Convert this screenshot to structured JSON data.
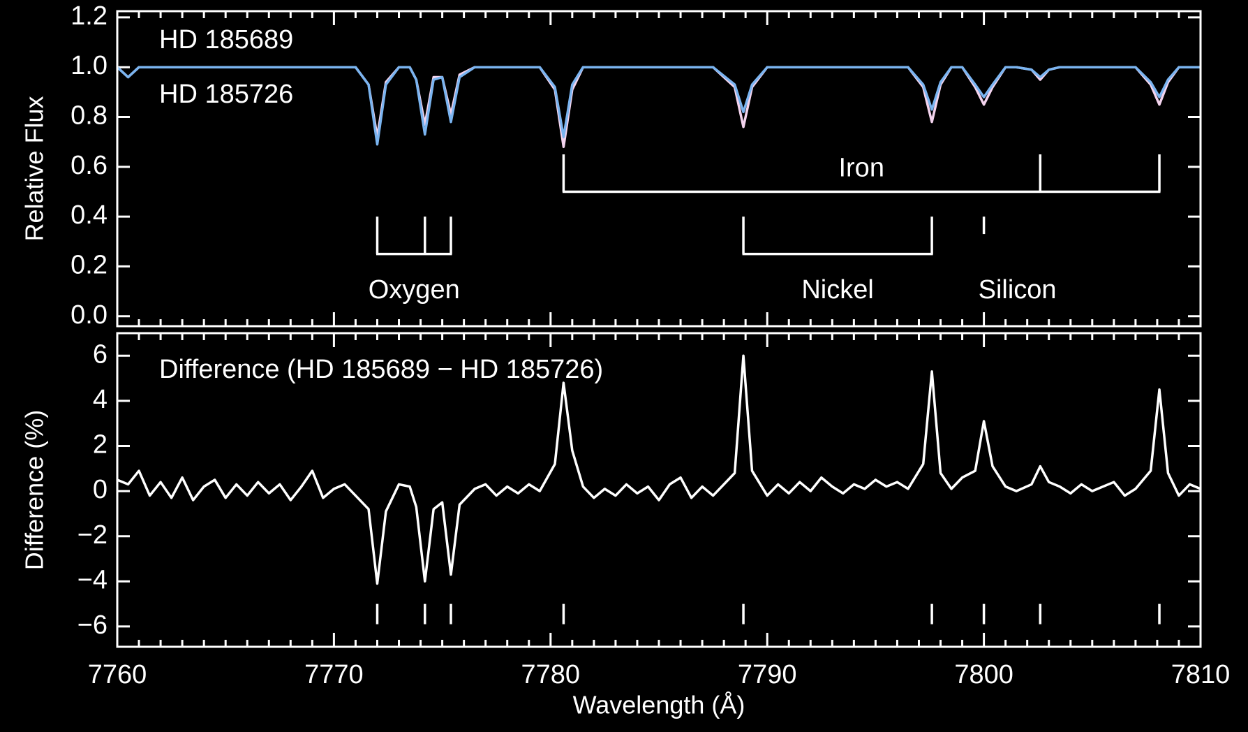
{
  "chart_data": [
    {
      "type": "line",
      "ylabel": "Relative Flux",
      "xlim": [
        7760,
        7810
      ],
      "xticks": [
        7760,
        7770,
        7780,
        7790,
        7800,
        7810
      ],
      "xminorticks": [
        7761,
        7762,
        7763,
        7764,
        7765,
        7766,
        7767,
        7768,
        7769,
        7771,
        7772,
        7773,
        7774,
        7775,
        7776,
        7777,
        7778,
        7779,
        7781,
        7782,
        7783,
        7784,
        7785,
        7786,
        7787,
        7788,
        7789,
        7791,
        7792,
        7793,
        7794,
        7795,
        7796,
        7797,
        7798,
        7799,
        7801,
        7802,
        7803,
        7804,
        7805,
        7806,
        7807,
        7808,
        7809
      ],
      "ylim": [
        -0.04,
        1.225
      ],
      "yticks": [
        {
          "value": 0,
          "label": "0.0"
        },
        0.2,
        0.4,
        0.6,
        0.8,
        {
          "value": 1,
          "label": "1.0"
        },
        1.2
      ],
      "legend": "upper left",
      "x": [
        7760,
        7760.5,
        7761,
        7761.5,
        7762,
        7762.5,
        7763,
        7763.5,
        7764,
        7764.5,
        7765,
        7765.5,
        7766,
        7766.5,
        7767,
        7767.5,
        7768,
        7768.5,
        7769,
        7769.5,
        7770,
        7770.5,
        7771,
        7771.6,
        7772.0,
        7772.4,
        7773,
        7773.5,
        7773.8,
        7774.2,
        7774.6,
        7775.0,
        7775.4,
        7775.8,
        7776.5,
        7777,
        7777.5,
        7778,
        7778.5,
        7779,
        7779.5,
        7780.2,
        7780.6,
        7781.0,
        7781.5,
        7782,
        7782.5,
        7783,
        7783.5,
        7784,
        7784.5,
        7785,
        7785.5,
        7786,
        7786.5,
        7787,
        7787.5,
        7788.5,
        7788.9,
        7789.3,
        7790,
        7790.5,
        7791,
        7791.5,
        7792,
        7792.5,
        7793,
        7793.5,
        7794,
        7794.5,
        7795,
        7795.5,
        7796,
        7796.5,
        7797.2,
        7797.6,
        7798.0,
        7798.5,
        7799,
        7799.6,
        7800.0,
        7800.4,
        7801,
        7801.5,
        7802.2,
        7802.6,
        7803.0,
        7803.5,
        7804,
        7804.5,
        7805,
        7805.5,
        7806,
        7806.5,
        7807,
        7807.7,
        7808.1,
        7808.5,
        7809,
        7809.5,
        7810
      ],
      "series": [
        {
          "name": "HD 185689",
          "color": "#7ab4f0",
          "values": [
            1,
            0.96,
            1,
            1,
            1,
            1,
            1,
            1,
            1,
            1,
            1,
            1,
            1,
            1,
            1,
            1,
            1,
            1,
            1,
            1,
            1,
            1,
            1,
            0.93,
            0.69,
            0.93,
            1,
            1,
            0.95,
            0.73,
            0.95,
            0.96,
            0.78,
            0.96,
            1,
            1,
            1,
            1,
            1,
            1,
            1,
            0.92,
            0.72,
            0.93,
            1,
            1,
            1,
            1,
            1,
            1,
            1,
            1,
            1,
            1,
            1,
            1,
            1,
            0.93,
            0.82,
            0.93,
            1,
            1,
            1,
            1,
            1,
            1,
            1,
            1,
            1,
            1,
            1,
            1,
            1,
            1,
            0.93,
            0.83,
            0.94,
            1,
            1,
            0.93,
            0.88,
            0.93,
            1,
            1,
            0.99,
            0.96,
            0.99,
            1,
            1,
            1,
            1,
            1,
            1,
            1,
            1,
            0.94,
            0.88,
            0.95,
            1,
            1,
            1
          ]
        },
        {
          "name": "HD 185726",
          "color": "#f4d4ee",
          "values": [
            1,
            0.96,
            1,
            1,
            1,
            1,
            1,
            1,
            1,
            1,
            1,
            1,
            1,
            1,
            1,
            1,
            1,
            1,
            1,
            1,
            1,
            1,
            1,
            0.93,
            0.72,
            0.94,
            1,
            1,
            0.95,
            0.77,
            0.96,
            0.96,
            0.81,
            0.97,
            1,
            1,
            1,
            1,
            1,
            1,
            1,
            0.91,
            0.68,
            0.91,
            1,
            1,
            1,
            1,
            1,
            1,
            1,
            1,
            1,
            1,
            1,
            1,
            1,
            0.92,
            0.76,
            0.92,
            1,
            1,
            1,
            1,
            1,
            1,
            1,
            1,
            1,
            1,
            1,
            1,
            1,
            1,
            0.92,
            0.78,
            0.93,
            1,
            1,
            0.92,
            0.85,
            0.92,
            1,
            1,
            0.99,
            0.95,
            0.99,
            1,
            1,
            1,
            1,
            1,
            1,
            1,
            1,
            0.93,
            0.85,
            0.94,
            1,
            1,
            1
          ]
        }
      ],
      "annotations": [
        {
          "text": "Oxygen",
          "color": "#f5e27a",
          "lines": [
            7772.0,
            7774.2,
            7775.4
          ]
        },
        {
          "text": "Iron",
          "color": "#8fe8e8",
          "lines": [
            7780.6,
            7802.6,
            7808.1
          ]
        },
        {
          "text": "Nickel",
          "color": "#8fe8e8",
          "lines": [
            7788.9,
            7797.6
          ]
        },
        {
          "text": "Silicon",
          "color": "#8fe8e8",
          "lines": [
            7800.0
          ]
        }
      ]
    },
    {
      "type": "line",
      "ylabel": "Difference (%)",
      "xlabel": "Wavelength (Å)",
      "xlim": [
        7760,
        7810
      ],
      "xticks": [
        7760,
        7770,
        7780,
        7790,
        7800,
        7810
      ],
      "xminorticks": [
        7761,
        7762,
        7763,
        7764,
        7765,
        7766,
        7767,
        7768,
        7769,
        7771,
        7772,
        7773,
        7774,
        7775,
        7776,
        7777,
        7778,
        7779,
        7781,
        7782,
        7783,
        7784,
        7785,
        7786,
        7787,
        7788,
        7789,
        7791,
        7792,
        7793,
        7794,
        7795,
        7796,
        7797,
        7798,
        7799,
        7801,
        7802,
        7803,
        7804,
        7805,
        7806,
        7807,
        7808,
        7809
      ],
      "ylim": [
        -6.9,
        7.0
      ],
      "yticks": [
        {
          "value": -6,
          "label": "−6"
        },
        {
          "value": -4,
          "label": "−4"
        },
        {
          "value": -2,
          "label": "−2"
        },
        0,
        2,
        4,
        6
      ],
      "x": [
        7760,
        7760.5,
        7761,
        7761.5,
        7762,
        7762.5,
        7763,
        7763.5,
        7764,
        7764.5,
        7765,
        7765.5,
        7766,
        7766.5,
        7767,
        7767.5,
        7768,
        7768.5,
        7769,
        7769.5,
        7770,
        7770.5,
        7771,
        7771.6,
        7772.0,
        7772.4,
        7773,
        7773.5,
        7773.8,
        7774.2,
        7774.6,
        7775.0,
        7775.4,
        7775.8,
        7776.5,
        7777,
        7777.5,
        7778,
        7778.5,
        7779,
        7779.5,
        7780.2,
        7780.6,
        7781.0,
        7781.5,
        7782,
        7782.5,
        7783,
        7783.5,
        7784,
        7784.5,
        7785,
        7785.5,
        7786,
        7786.5,
        7787,
        7787.5,
        7788.5,
        7788.9,
        7789.3,
        7790,
        7790.5,
        7791,
        7791.5,
        7792,
        7792.5,
        7793,
        7793.5,
        7794,
        7794.5,
        7795,
        7795.5,
        7796,
        7796.5,
        7797.2,
        7797.6,
        7798.0,
        7798.5,
        7799,
        7799.6,
        7800.0,
        7800.4,
        7801,
        7801.5,
        7802.2,
        7802.6,
        7803.0,
        7803.5,
        7804,
        7804.5,
        7805,
        7805.5,
        7806,
        7806.5,
        7807,
        7807.7,
        7808.1,
        7808.5,
        7809,
        7809.5,
        7810
      ],
      "series": [
        {
          "color": "#ffffff",
          "values": [
            0.5,
            0.3,
            0.9,
            -0.2,
            0.4,
            -0.3,
            0.6,
            -0.4,
            0.2,
            0.5,
            -0.3,
            0.3,
            -0.2,
            0.4,
            -0.1,
            0.3,
            -0.4,
            0.2,
            0.9,
            -0.3,
            0.1,
            0.3,
            -0.2,
            -0.8,
            -4.1,
            -0.9,
            0.3,
            0.2,
            -0.7,
            -4.0,
            -0.8,
            -0.5,
            -3.7,
            -0.6,
            0.1,
            0.3,
            -0.2,
            0.2,
            -0.1,
            0.3,
            0.0,
            1.2,
            4.8,
            1.8,
            0.2,
            -0.3,
            0.1,
            -0.2,
            0.3,
            -0.1,
            0.2,
            -0.4,
            0.3,
            0.6,
            -0.3,
            0.2,
            -0.2,
            0.8,
            6.0,
            0.9,
            -0.2,
            0.3,
            -0.1,
            0.4,
            0.0,
            0.6,
            0.2,
            -0.1,
            0.3,
            0.1,
            0.5,
            0.2,
            0.4,
            0.1,
            1.2,
            5.3,
            0.8,
            0.1,
            0.6,
            0.9,
            3.1,
            1.1,
            0.2,
            0.0,
            0.3,
            1.1,
            0.4,
            0.2,
            -0.1,
            0.3,
            0.0,
            0.2,
            0.4,
            -0.2,
            0.1,
            0.9,
            4.5,
            0.8,
            -0.2,
            0.3,
            0.1
          ]
        }
      ],
      "line_markers": [
        7772.0,
        7774.2,
        7775.4,
        7780.6,
        7788.9,
        7797.6,
        7800.0,
        7802.6,
        7808.1
      ],
      "annotations": [
        {
          "text": "Difference (HD 185689 − HD 185726)",
          "color": "#ffffff"
        }
      ]
    }
  ]
}
